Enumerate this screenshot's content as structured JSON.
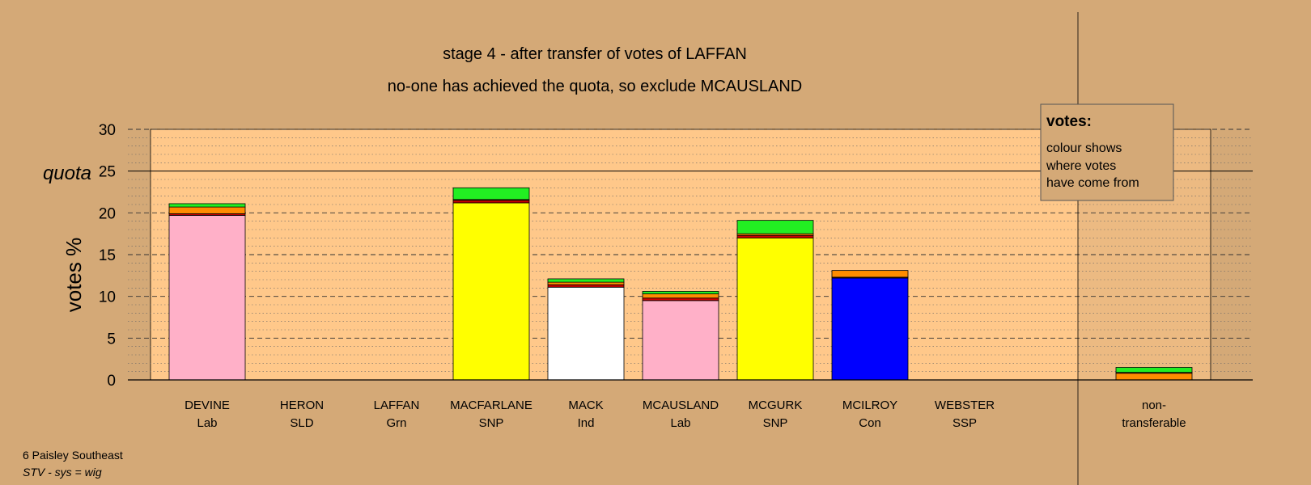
{
  "title_line1": "stage 4 - after transfer of votes of LAFFAN",
  "title_line2": "no-one has achieved the quota, so exclude MCAUSLAND",
  "ylabel": "votes %",
  "quota_label": "quota",
  "legend": {
    "heading": "votes:",
    "lines": [
      "colour shows",
      "where votes",
      "have come from"
    ]
  },
  "footer": {
    "constituency": "6 Paisley Southeast",
    "system": "STV - sys = wig"
  },
  "colors": {
    "background": "#d4a977",
    "plot_area": "#ffc88a",
    "Lab": "#ffb0c8",
    "SNP": "#ffff00",
    "Ind": "#ffffff",
    "Con": "#0000ff",
    "SLD": "#ff8c00",
    "Grn": "#22ee22",
    "SSP": "#cc0000"
  },
  "chart_data": {
    "type": "bar",
    "stacked": true,
    "ylim": [
      0,
      30
    ],
    "yticks": [
      0,
      5,
      10,
      15,
      20,
      25,
      30
    ],
    "quota": 25,
    "grid": "dashed major, dotted minor",
    "legend_position": "top-right",
    "categories": [
      {
        "name": "DEVINE",
        "party": "Lab"
      },
      {
        "name": "HERON",
        "party": "SLD"
      },
      {
        "name": "LAFFAN",
        "party": "Grn"
      },
      {
        "name": "MACFARLANE",
        "party": "SNP"
      },
      {
        "name": "MACK",
        "party": "Ind"
      },
      {
        "name": "MCAUSLAND",
        "party": "Lab"
      },
      {
        "name": "MCGURK",
        "party": "SNP"
      },
      {
        "name": "MCILROY",
        "party": "Con"
      },
      {
        "name": "WEBSTER",
        "party": "SSP"
      },
      {
        "name": "non-",
        "party": "transferable"
      }
    ],
    "bars": [
      [
        {
          "source": "Lab",
          "value": 19.7
        },
        {
          "source": "SSP",
          "value": 0.2
        },
        {
          "source": "SLD",
          "value": 0.8
        },
        {
          "source": "Grn",
          "value": 0.4
        }
      ],
      [],
      [],
      [
        {
          "source": "SNP",
          "value": 21.2
        },
        {
          "source": "SSP",
          "value": 0.3
        },
        {
          "source": "SLD",
          "value": 0.1
        },
        {
          "source": "Grn",
          "value": 1.4
        }
      ],
      [
        {
          "source": "Ind",
          "value": 11.1
        },
        {
          "source": "SSP",
          "value": 0.3
        },
        {
          "source": "SLD",
          "value": 0.3
        },
        {
          "source": "Grn",
          "value": 0.4
        }
      ],
      [
        {
          "source": "Lab",
          "value": 9.5
        },
        {
          "source": "SSP",
          "value": 0.3
        },
        {
          "source": "SLD",
          "value": 0.5
        },
        {
          "source": "Grn",
          "value": 0.3
        }
      ],
      [
        {
          "source": "SNP",
          "value": 17.0
        },
        {
          "source": "SSP",
          "value": 0.3
        },
        {
          "source": "SLD",
          "value": 0.2
        },
        {
          "source": "Grn",
          "value": 1.6
        }
      ],
      [
        {
          "source": "Con",
          "value": 12.2
        },
        {
          "source": "SSP",
          "value": 0.1
        },
        {
          "source": "SLD",
          "value": 0.8
        }
      ],
      [],
      [
        {
          "source": "SLD",
          "value": 0.8
        },
        {
          "source": "SSP",
          "value": 0.1
        },
        {
          "source": "Grn",
          "value": 0.6
        }
      ]
    ]
  }
}
